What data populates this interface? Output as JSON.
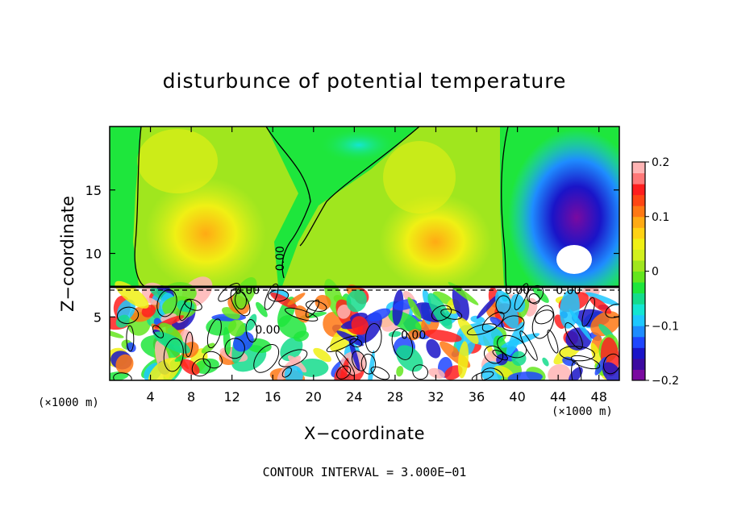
{
  "chart_data": {
    "type": "heatmap",
    "title": "disturbunce of potential temperature",
    "xlabel": "X−coordinate",
    "ylabel": "Z−coordinate",
    "x_unit_label": "(×1000 m)",
    "z_unit_label": "(×1000 m)",
    "footer": "CONTOUR INTERVAL = 3.000E−01",
    "xlim": [
      0,
      50
    ],
    "ylim": [
      0,
      20
    ],
    "x_ticks": [
      4,
      8,
      12,
      16,
      20,
      24,
      28,
      32,
      36,
      40,
      44,
      48
    ],
    "x_tick_labels": [
      "4",
      "8",
      "12",
      "16",
      "20",
      "24",
      "28",
      "32",
      "36",
      "40",
      "44",
      "48"
    ],
    "y_ticks": [
      5,
      10,
      15
    ],
    "y_tick_labels": [
      "5",
      "10",
      "15"
    ],
    "colorbar": {
      "range": [
        -0.2,
        0.2
      ],
      "ticks": [
        -0.2,
        -0.1,
        0,
        0.1,
        0.2
      ],
      "tick_labels": [
        "−0.2",
        "−0.1",
        "0",
        "0.1",
        "0.2"
      ],
      "colors": [
        "#7a0aa0",
        "#3c0aa0",
        "#1a14c8",
        "#1e46ff",
        "#1e8cff",
        "#1ec8ff",
        "#14e6d2",
        "#14dc8c",
        "#1ee63c",
        "#64e61e",
        "#a0e61e",
        "#d2f01e",
        "#f0f014",
        "#ffd214",
        "#ffaa14",
        "#ff7814",
        "#ff4614",
        "#ff1e1e",
        "#ff7878",
        "#ffb4b4"
      ]
    },
    "contour_labels": [
      {
        "text": "0.00",
        "x": 13.5,
        "z": 7.1
      },
      {
        "text": "0.00",
        "x": 16.7,
        "z": 9.6
      },
      {
        "text": "0.00",
        "x": 15.5,
        "z": 4.0
      },
      {
        "text": "0.00",
        "x": 29.8,
        "z": 3.6
      },
      {
        "text": "0.00",
        "x": 40.0,
        "z": 7.1
      },
      {
        "text": "0.00",
        "x": 45.0,
        "z": 7.1
      }
    ]
  }
}
